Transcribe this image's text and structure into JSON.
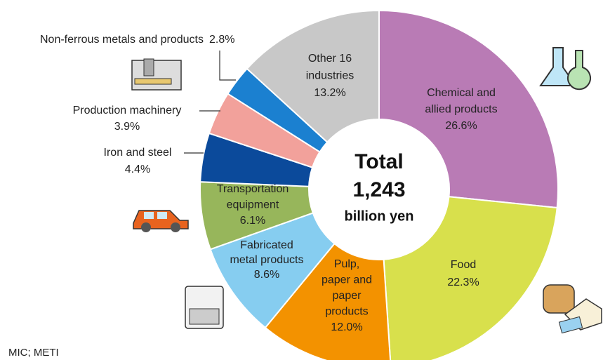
{
  "chart_data": {
    "type": "donut",
    "center_text": [
      "Total",
      "1,243",
      "billion yen"
    ],
    "categories": [
      [
        "Chemical and",
        "allied products"
      ],
      [
        "Food"
      ],
      [
        "Pulp,",
        "paper and",
        "paper",
        "products"
      ],
      [
        "Fabricated",
        "metal products"
      ],
      [
        "Transportation",
        "equipment"
      ],
      [
        "Iron and steel"
      ],
      [
        "Production machinery"
      ],
      [
        "Non-ferrous metals and products"
      ],
      [
        "Other 16",
        "industries"
      ]
    ],
    "values": [
      26.6,
      22.3,
      12.0,
      8.6,
      6.1,
      4.4,
      3.9,
      2.8,
      13.2
    ],
    "value_labels": [
      "26.6%",
      "22.3%",
      "12.0%",
      "8.6%",
      "6.1%",
      "4.4%",
      "3.9%",
      "2.8%",
      "13.2%"
    ],
    "colors": [
      "#b97bb5",
      "#d8e04c",
      "#f39200",
      "#86cdf0",
      "#97b65b",
      "#0b4a9b",
      "#f2a19b",
      "#1b80d0",
      "#c8c8c8"
    ],
    "source": "MIC; METI"
  }
}
